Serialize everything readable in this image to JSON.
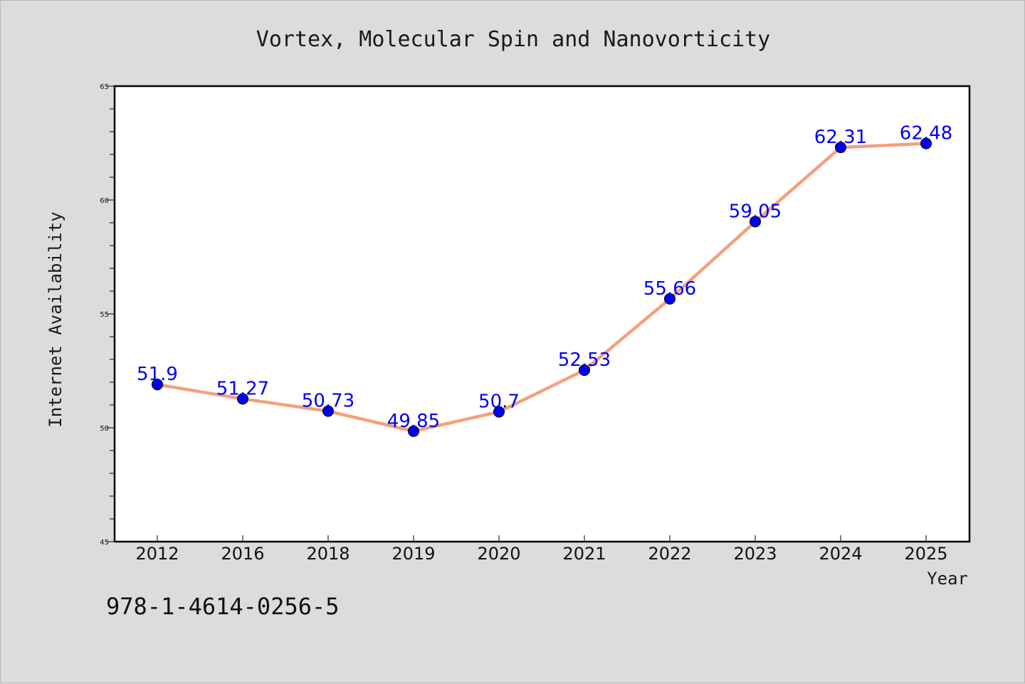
{
  "chart_data": {
    "type": "line",
    "title": "Vortex, Molecular Spin and Nanovorticity",
    "xlabel": "Year",
    "ylabel": "Internet Availability",
    "categories": [
      "2012",
      "2016",
      "2018",
      "2019",
      "2020",
      "2021",
      "2022",
      "2023",
      "2024",
      "2025"
    ],
    "series": [
      {
        "values": [
          51.9,
          51.27,
          50.73,
          49.85,
          50.7,
          52.53,
          55.66,
          59.05,
          62.31,
          62.48
        ],
        "labels": [
          "51.9",
          "51.27",
          "50.73",
          "49.85",
          "50.7",
          "52.53",
          "55.66",
          "59.05",
          "62.31",
          "62.48"
        ]
      }
    ],
    "ylim": [
      45,
      65
    ],
    "yticks": [
      "45",
      "50",
      "55",
      "60",
      "65"
    ],
    "grid": false,
    "colors": {
      "line": "#f4a07c",
      "marker": "#0000ee",
      "label": "#0000ee"
    }
  },
  "footer": {
    "code": "978-1-4614-0256-5"
  }
}
